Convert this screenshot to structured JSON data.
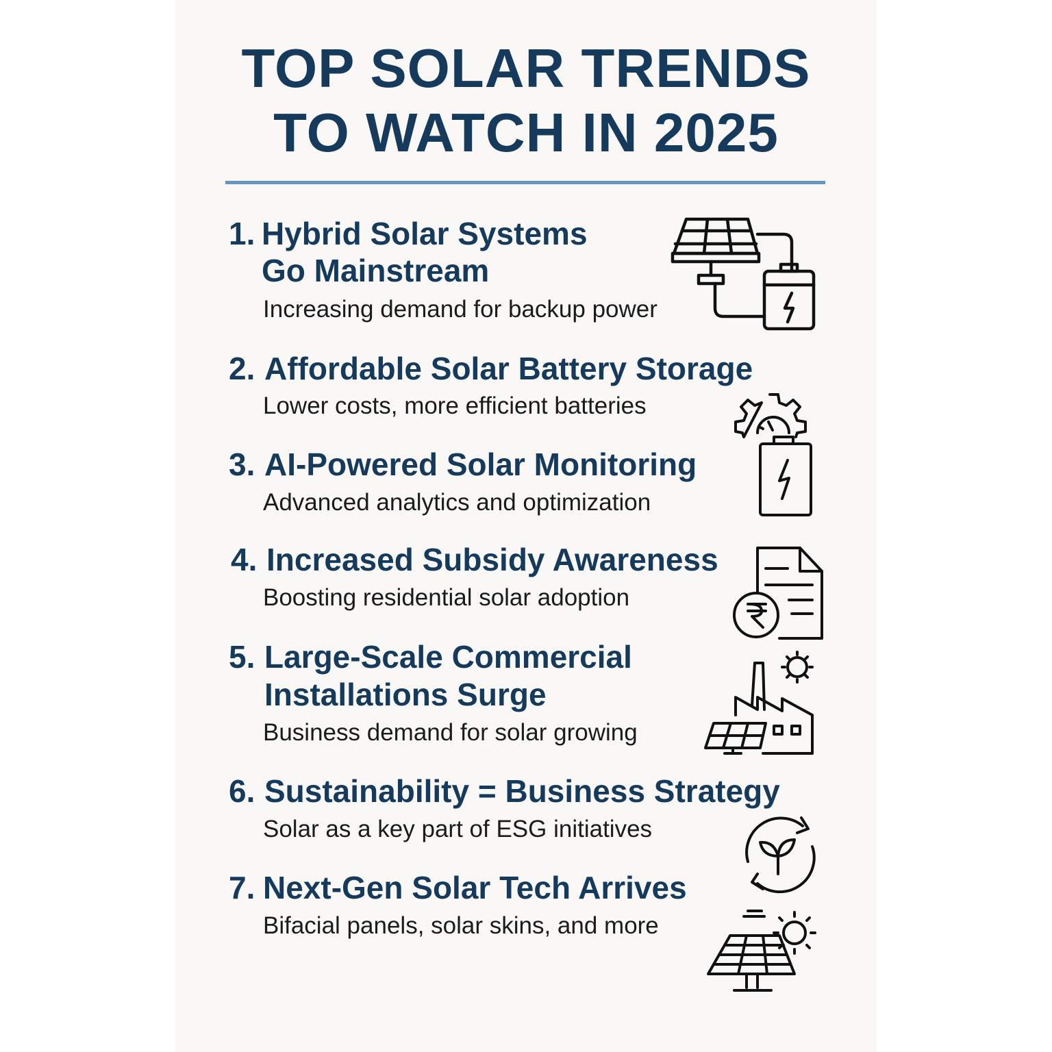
{
  "title": {
    "line1": "TOP SOLAR TRENDS",
    "line2": "TO WATCH IN 2025"
  },
  "trends": [
    {
      "number": "1.",
      "heading_line1": "Hybrid Solar Systems",
      "heading_line2": "Go Mainstream",
      "description": "Increasing demand for backup power",
      "icon": "solar-panel-battery-icon"
    },
    {
      "number": "2.",
      "heading": "Affordable Solar Battery Storage",
      "description": "Lower costs, more efficient batteries",
      "icon": "gear-battery-icon"
    },
    {
      "number": "3.",
      "heading": "AI-Powered Solar Monitoring",
      "description": "Advanced analytics and optimization"
    },
    {
      "number": "4.",
      "heading": "Increased Subsidy Awareness",
      "description": "Boosting residential solar adoption",
      "icon": "rupee-document-icon"
    },
    {
      "number": "5.",
      "heading_line1": "Large-Scale Commercial",
      "heading_line2": "Installations Surge",
      "description": "Business demand for solar  growing",
      "icon": "factory-solar-icon"
    },
    {
      "number": "6.",
      "heading": "Sustainability = Business Strategy",
      "description": "Solar as a key part of ESG initiatives",
      "icon": "recycle-leaf-icon"
    },
    {
      "number": "7.",
      "heading": "Next-Gen Solar Tech Arrives",
      "description": "Bifacial panels, solar skins, and more",
      "icon": "solar-panel-sun-icon"
    }
  ],
  "colors": {
    "heading": "#163a5c",
    "rule": "#6794c4",
    "background": "#f9f8f6",
    "text": "#1b1b1b"
  }
}
